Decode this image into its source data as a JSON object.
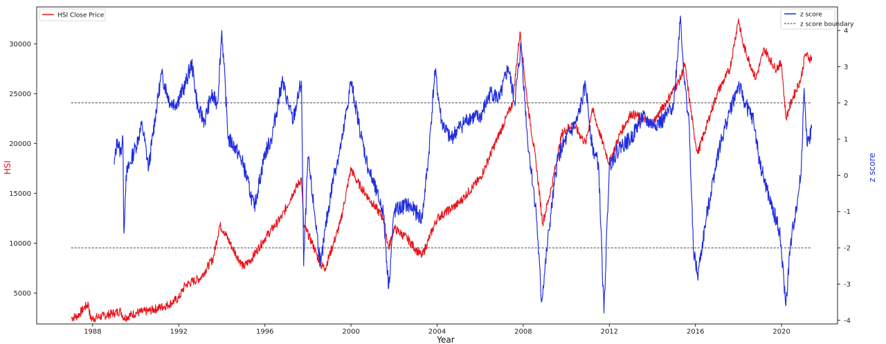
{
  "chart_data": {
    "type": "line",
    "xlabel": "Year",
    "ylabel_left": "HSI",
    "ylabel_right": "z score",
    "xlim": [
      1985.4,
      2022.6
    ],
    "ylim_left": [
      1900,
      33700
    ],
    "ylim_right": [
      -4.1,
      4.65
    ],
    "x_ticks": [
      1988,
      1992,
      1996,
      2000,
      2004,
      2008,
      2012,
      2016,
      2020
    ],
    "y_ticks_left": [
      5000,
      10000,
      15000,
      20000,
      25000,
      30000
    ],
    "y_ticks_right": [
      -4,
      -3,
      -2,
      -1,
      0,
      1,
      2,
      3,
      4
    ],
    "grid": false,
    "legend_left_position": "upper-left",
    "legend_right_position": "upper-right",
    "series": [
      {
        "name": "HSI Close Price",
        "axis": "left",
        "color": "#e8141b",
        "x": [
          1987.0,
          1987.3,
          1987.6,
          1987.8,
          1987.9,
          1988.5,
          1989.0,
          1989.3,
          1989.45,
          1990.0,
          1990.6,
          1991.5,
          1992.0,
          1992.3,
          1993.0,
          1993.6,
          1993.9,
          1994.1,
          1994.5,
          1995.0,
          1995.4,
          1996.0,
          1996.8,
          1997.3,
          1997.7,
          1997.8,
          1998.2,
          1998.6,
          1998.8,
          1999.5,
          2000.0,
          2000.2,
          2000.5,
          2001.0,
          2001.5,
          2001.75,
          2002.0,
          2002.6,
          2003.0,
          2003.3,
          2004.0,
          2005.0,
          2006.0,
          2007.0,
          2007.5,
          2007.85,
          2008.2,
          2008.6,
          2008.9,
          2009.3,
          2009.8,
          2010.3,
          2010.9,
          2011.2,
          2011.7,
          2012.0,
          2012.5,
          2013.0,
          2013.6,
          2014.0,
          2014.6,
          2015.3,
          2015.5,
          2015.9,
          2016.1,
          2016.7,
          2017.0,
          2017.6,
          2018.0,
          2018.2,
          2018.8,
          2019.2,
          2019.7,
          2020.0,
          2020.2,
          2020.5,
          2020.9,
          2021.1,
          2021.3,
          2021.4
        ],
        "values": [
          2500,
          2700,
          3500,
          3900,
          2400,
          2700,
          3000,
          3200,
          2500,
          3000,
          3200,
          3800,
          4500,
          5800,
          6500,
          8500,
          11800,
          11200,
          9500,
          7600,
          8500,
          10500,
          12700,
          15000,
          16500,
          11800,
          10000,
          7800,
          7500,
          12000,
          17500,
          16500,
          15500,
          14000,
          12500,
          9500,
          11500,
          10500,
          9400,
          8700,
          12500,
          14000,
          16500,
          21500,
          24000,
          31200,
          24000,
          18000,
          12000,
          15500,
          21000,
          22000,
          20000,
          23500,
          20000,
          18000,
          21000,
          23000,
          22500,
          22000,
          24000,
          26500,
          28000,
          21500,
          19000,
          23000,
          25000,
          27500,
          32500,
          30000,
          26500,
          29500,
          27500,
          28000,
          22500,
          24500,
          26500,
          29000,
          28500,
          28700
        ]
      },
      {
        "name": "z score",
        "axis": "right",
        "color": "#1f2de0",
        "x": [
          1989.0,
          1989.15,
          1989.3,
          1989.4,
          1989.45,
          1989.55,
          1990.0,
          1990.3,
          1990.6,
          1990.9,
          1991.2,
          1991.6,
          1991.9,
          1992.3,
          1992.6,
          1992.9,
          1993.2,
          1993.5,
          1993.8,
          1994.0,
          1994.3,
          1994.6,
          1995.0,
          1995.5,
          1996.0,
          1996.3,
          1996.8,
          1997.3,
          1997.7,
          1997.8,
          1998.0,
          1998.3,
          1998.6,
          1998.8,
          1999.2,
          1999.6,
          2000.0,
          2000.5,
          2000.8,
          2001.2,
          2001.5,
          2001.75,
          2002.0,
          2002.6,
          2003.0,
          2003.3,
          2003.6,
          2003.9,
          2004.2,
          2004.6,
          2005.0,
          2005.5,
          2006.0,
          2006.5,
          2006.9,
          2007.3,
          2007.6,
          2007.9,
          2008.2,
          2008.6,
          2008.85,
          2009.2,
          2009.6,
          2010.0,
          2010.5,
          2010.9,
          2011.2,
          2011.5,
          2011.75,
          2012.0,
          2012.5,
          2013.0,
          2013.5,
          2014.0,
          2014.5,
          2015.0,
          2015.3,
          2015.5,
          2015.7,
          2015.9,
          2016.1,
          2016.5,
          2017.0,
          2017.5,
          2018.0,
          2018.3,
          2018.7,
          2019.0,
          2019.5,
          2019.9,
          2020.2,
          2020.4,
          2020.6,
          2020.9,
          2021.05,
          2021.2,
          2021.4
        ],
        "values": [
          0.3,
          1.0,
          0.6,
          1.1,
          -1.6,
          0.0,
          0.8,
          1.4,
          0.2,
          1.6,
          2.8,
          2.0,
          2.0,
          2.5,
          3.1,
          1.8,
          1.5,
          2.2,
          2.0,
          4.0,
          1.0,
          0.8,
          0.3,
          -0.9,
          0.6,
          1.0,
          2.6,
          1.5,
          2.6,
          -2.5,
          0.5,
          -1.0,
          -2.5,
          -1.5,
          0.0,
          1.0,
          2.6,
          1.0,
          0.2,
          -0.5,
          -1.0,
          -3.1,
          -1.0,
          -0.8,
          -1.0,
          -1.2,
          0.5,
          2.9,
          1.5,
          1.0,
          1.3,
          1.6,
          1.6,
          2.3,
          2.1,
          3.0,
          2.0,
          3.6,
          1.0,
          -1.0,
          -3.5,
          -1.5,
          0.5,
          1.0,
          1.5,
          2.5,
          0.8,
          0.3,
          -3.8,
          0.3,
          0.8,
          1.0,
          1.6,
          1.4,
          1.5,
          2.0,
          4.4,
          2.5,
          1.5,
          -2.0,
          -2.8,
          -1.2,
          0.5,
          1.6,
          2.5,
          2.0,
          1.5,
          0.3,
          -0.8,
          -1.5,
          -3.6,
          -2.0,
          -1.2,
          0.0,
          2.4,
          0.8,
          1.3
        ]
      },
      {
        "name": "z score boundary",
        "axis": "right",
        "color": "#222222",
        "style": "dashed",
        "x": [
          1987.0,
          2021.4
        ],
        "upper": 2,
        "lower": -2
      }
    ]
  }
}
